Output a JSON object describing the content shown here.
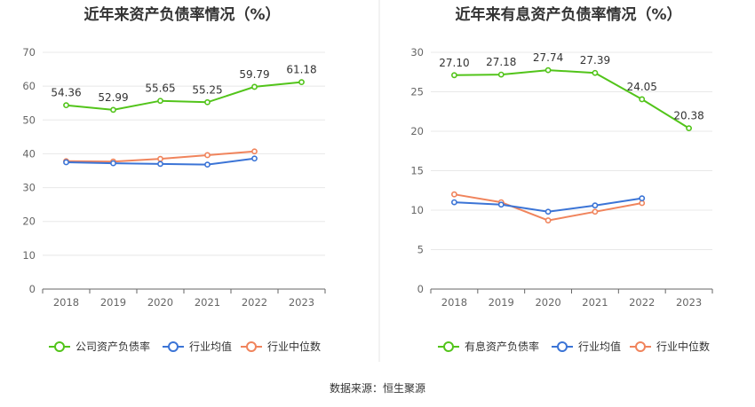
{
  "source": "数据来源：恒生聚源",
  "chart_data": [
    {
      "type": "line",
      "title": "近年来资产负债率情况（%）",
      "categories": [
        "2018",
        "2019",
        "2020",
        "2021",
        "2022",
        "2023"
      ],
      "ylim": [
        0,
        70
      ],
      "yticks": [
        0,
        10,
        20,
        30,
        40,
        50,
        60,
        70
      ],
      "grid": true,
      "legend_position": "bottom",
      "series": [
        {
          "name": "公司资产负债率",
          "color": "#52c41a",
          "values": [
            54.36,
            52.99,
            55.65,
            55.25,
            59.79,
            61.18
          ],
          "labels": [
            "54.36",
            "52.99",
            "55.65",
            "55.25",
            "59.79",
            "61.18"
          ]
        },
        {
          "name": "行业均值",
          "color": "#3b74d6",
          "values": [
            37.5,
            37.2,
            37.0,
            36.8,
            38.6,
            null
          ]
        },
        {
          "name": "行业中位数",
          "color": "#f0845c",
          "values": [
            37.8,
            37.7,
            38.5,
            39.6,
            40.7,
            null
          ]
        }
      ]
    },
    {
      "type": "line",
      "title": "近年来有息资产负债率情况（%）",
      "categories": [
        "2018",
        "2019",
        "2020",
        "2021",
        "2022",
        "2023"
      ],
      "ylim": [
        0,
        30
      ],
      "yticks": [
        0,
        5,
        10,
        15,
        20,
        25,
        30
      ],
      "grid": true,
      "legend_position": "bottom",
      "series": [
        {
          "name": "有息资产负债率",
          "color": "#52c41a",
          "values": [
            27.1,
            27.18,
            27.74,
            27.39,
            24.05,
            20.38
          ],
          "labels": [
            "27.10",
            "27.18",
            "27.74",
            "27.39",
            "24.05",
            "20.38"
          ]
        },
        {
          "name": "行业均值",
          "color": "#3b74d6",
          "values": [
            11.0,
            10.7,
            9.8,
            10.6,
            11.5,
            null
          ]
        },
        {
          "name": "行业中位数",
          "color": "#f0845c",
          "values": [
            12.0,
            11.0,
            8.7,
            9.8,
            10.9,
            null
          ]
        }
      ]
    }
  ]
}
